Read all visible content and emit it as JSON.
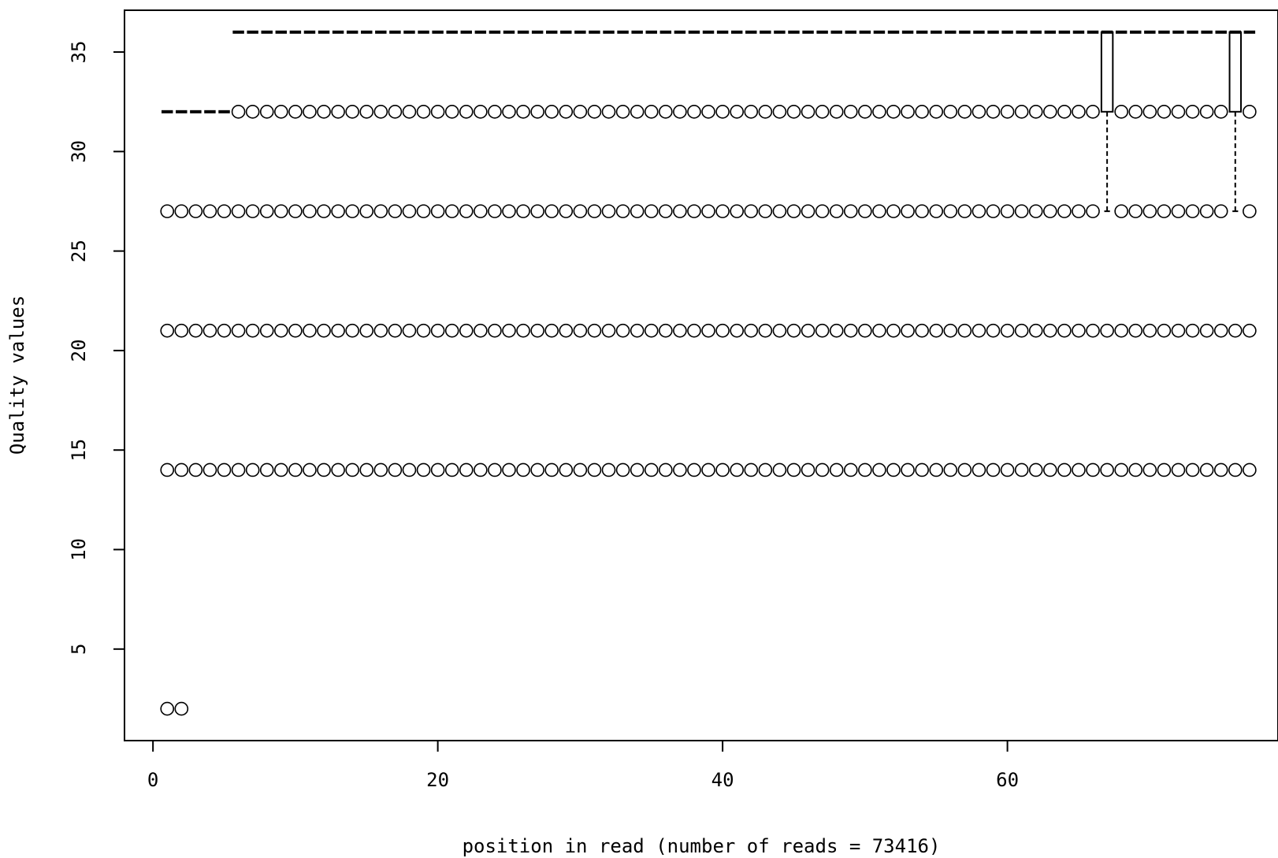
{
  "chart_data": {
    "type": "boxplot",
    "title": "",
    "xlabel": "position in read (number of reads = 73416)",
    "ylabel": "Quality values",
    "xlim": [
      -2,
      79
    ],
    "ylim": [
      0.4,
      37.1
    ],
    "xticks": [
      0,
      20,
      40,
      60
    ],
    "yticks": [
      5,
      10,
      15,
      20,
      25,
      30,
      35
    ],
    "positions": {
      "from": 1,
      "to": 77
    },
    "box_stats_default": {
      "whisker_low": 36,
      "q1": 36,
      "median": 36,
      "q3": 36,
      "whisker_high": 36
    },
    "box_stats_overrides": [
      {
        "positions": [
          1,
          2,
          3,
          4,
          5
        ],
        "whisker_low": 32,
        "q1": 32,
        "median": 32,
        "q3": 32,
        "whisker_high": 32
      },
      {
        "positions": [
          67,
          76
        ],
        "whisker_low": 27,
        "q1": 32,
        "median": 36,
        "q3": 36,
        "whisker_high": 36
      }
    ],
    "outliers": [
      {
        "y": 32,
        "from": 6,
        "to": 77,
        "except": [
          67,
          76
        ]
      },
      {
        "y": 27,
        "from": 1,
        "to": 77,
        "except": [
          67,
          76
        ]
      },
      {
        "y": 21,
        "from": 1,
        "to": 77,
        "except": []
      },
      {
        "y": 14,
        "from": 1,
        "to": 77,
        "except": []
      },
      {
        "y": 2,
        "from": 1,
        "to": 2,
        "except": []
      }
    ]
  }
}
